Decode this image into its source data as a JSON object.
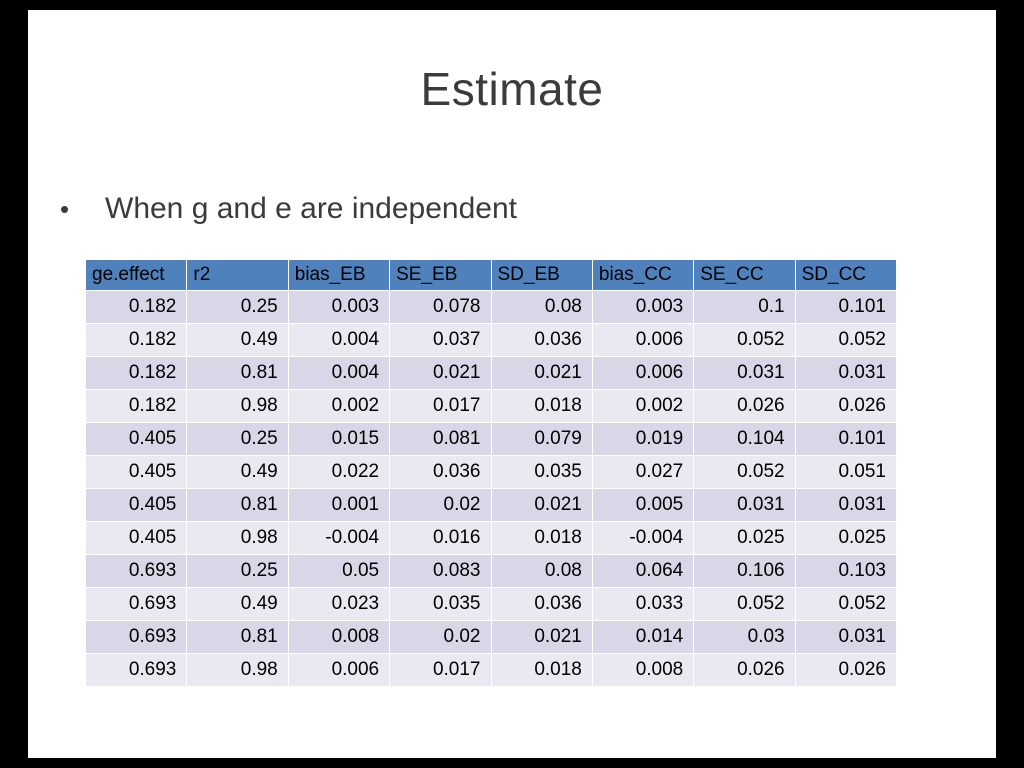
{
  "slide": {
    "title": "Estimate",
    "bullet": {
      "marker": "•",
      "text": "When g and e are independent"
    }
  },
  "colors": {
    "frame_bg": "#000000",
    "slide_bg": "#FFFFFF",
    "text": "#3B3B3B",
    "header_bg": "#4F81BD",
    "row_odd": "#D8D7E7",
    "row_even": "#E9E9F2"
  },
  "chart_data": {
    "type": "table",
    "title": "Estimate",
    "columns": [
      "ge.effect",
      "r2",
      "bias_EB",
      "SE_EB",
      "SD_EB",
      "bias_CC",
      "SE_CC",
      "SD_CC"
    ],
    "rows": [
      [
        "0.182",
        "0.25",
        "0.003",
        "0.078",
        "0.08",
        "0.003",
        "0.1",
        "0.101"
      ],
      [
        "0.182",
        "0.49",
        "0.004",
        "0.037",
        "0.036",
        "0.006",
        "0.052",
        "0.052"
      ],
      [
        "0.182",
        "0.81",
        "0.004",
        "0.021",
        "0.021",
        "0.006",
        "0.031",
        "0.031"
      ],
      [
        "0.182",
        "0.98",
        "0.002",
        "0.017",
        "0.018",
        "0.002",
        "0.026",
        "0.026"
      ],
      [
        "0.405",
        "0.25",
        "0.015",
        "0.081",
        "0.079",
        "0.019",
        "0.104",
        "0.101"
      ],
      [
        "0.405",
        "0.49",
        "0.022",
        "0.036",
        "0.035",
        "0.027",
        "0.052",
        "0.051"
      ],
      [
        "0.405",
        "0.81",
        "0.001",
        "0.02",
        "0.021",
        "0.005",
        "0.031",
        "0.031"
      ],
      [
        "0.405",
        "0.98",
        "-0.004",
        "0.016",
        "0.018",
        "-0.004",
        "0.025",
        "0.025"
      ],
      [
        "0.693",
        "0.25",
        "0.05",
        "0.083",
        "0.08",
        "0.064",
        "0.106",
        "0.103"
      ],
      [
        "0.693",
        "0.49",
        "0.023",
        "0.035",
        "0.036",
        "0.033",
        "0.052",
        "0.052"
      ],
      [
        "0.693",
        "0.81",
        "0.008",
        "0.02",
        "0.021",
        "0.014",
        "0.03",
        "0.031"
      ],
      [
        "0.693",
        "0.98",
        "0.006",
        "0.017",
        "0.018",
        "0.008",
        "0.026",
        "0.026"
      ]
    ]
  }
}
